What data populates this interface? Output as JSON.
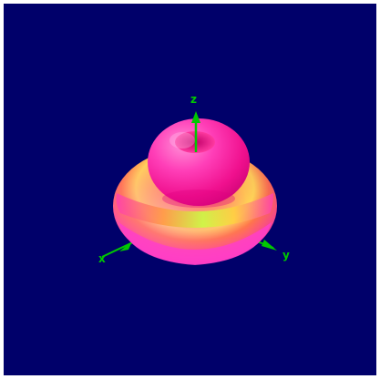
{
  "scene": {
    "background_color": "#00006a",
    "axis_color": "#00c800",
    "axes": [
      {
        "name": "x",
        "label": "x"
      },
      {
        "name": "y",
        "label": "y"
      },
      {
        "name": "z",
        "label": "z"
      }
    ],
    "surface_colors": {
      "core": "#ff2f8f",
      "highlight": "#ffe23a",
      "rim": "#ff5fd0",
      "shadow": "#d0006a"
    }
  }
}
